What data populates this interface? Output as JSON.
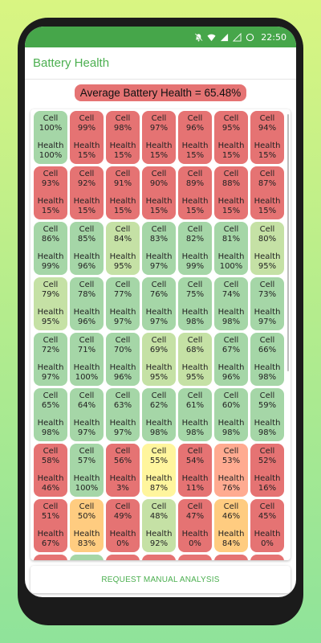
{
  "status_bar": {
    "time": "22:50"
  },
  "app_bar": {
    "title": "Battery Health"
  },
  "summary": {
    "label": "Average Battery Health = 65.48%"
  },
  "colors": {
    "red": "#e57373",
    "green": "#a5d6a7",
    "lightgreen": "#c5e1a5",
    "yellow": "#fff59d",
    "salmon": "#ffab91",
    "orange": "#ffcc80",
    "accent": "#4caf50",
    "status_bar": "#46a64a"
  },
  "labels": {
    "cell": "Cell",
    "health": "Health"
  },
  "cells": [
    {
      "cell": "100%",
      "health": "100%",
      "color": "green"
    },
    {
      "cell": "99%",
      "health": "15%",
      "color": "red"
    },
    {
      "cell": "98%",
      "health": "15%",
      "color": "red"
    },
    {
      "cell": "97%",
      "health": "15%",
      "color": "red"
    },
    {
      "cell": "96%",
      "health": "15%",
      "color": "red"
    },
    {
      "cell": "95%",
      "health": "15%",
      "color": "red"
    },
    {
      "cell": "94%",
      "health": "15%",
      "color": "red"
    },
    {
      "cell": "93%",
      "health": "15%",
      "color": "red"
    },
    {
      "cell": "92%",
      "health": "15%",
      "color": "red"
    },
    {
      "cell": "91%",
      "health": "15%",
      "color": "red"
    },
    {
      "cell": "90%",
      "health": "15%",
      "color": "red"
    },
    {
      "cell": "89%",
      "health": "15%",
      "color": "red"
    },
    {
      "cell": "88%",
      "health": "15%",
      "color": "red"
    },
    {
      "cell": "87%",
      "health": "15%",
      "color": "red"
    },
    {
      "cell": "86%",
      "health": "99%",
      "color": "green"
    },
    {
      "cell": "85%",
      "health": "96%",
      "color": "green"
    },
    {
      "cell": "84%",
      "health": "95%",
      "color": "lightgreen"
    },
    {
      "cell": "83%",
      "health": "97%",
      "color": "green"
    },
    {
      "cell": "82%",
      "health": "99%",
      "color": "green"
    },
    {
      "cell": "81%",
      "health": "100%",
      "color": "green"
    },
    {
      "cell": "80%",
      "health": "95%",
      "color": "lightgreen"
    },
    {
      "cell": "79%",
      "health": "95%",
      "color": "lightgreen"
    },
    {
      "cell": "78%",
      "health": "96%",
      "color": "green"
    },
    {
      "cell": "77%",
      "health": "97%",
      "color": "green"
    },
    {
      "cell": "76%",
      "health": "97%",
      "color": "green"
    },
    {
      "cell": "75%",
      "health": "98%",
      "color": "green"
    },
    {
      "cell": "74%",
      "health": "98%",
      "color": "green"
    },
    {
      "cell": "73%",
      "health": "97%",
      "color": "green"
    },
    {
      "cell": "72%",
      "health": "97%",
      "color": "green"
    },
    {
      "cell": "71%",
      "health": "100%",
      "color": "green"
    },
    {
      "cell": "70%",
      "health": "96%",
      "color": "green"
    },
    {
      "cell": "69%",
      "health": "95%",
      "color": "lightgreen"
    },
    {
      "cell": "68%",
      "health": "95%",
      "color": "lightgreen"
    },
    {
      "cell": "67%",
      "health": "96%",
      "color": "green"
    },
    {
      "cell": "66%",
      "health": "98%",
      "color": "green"
    },
    {
      "cell": "65%",
      "health": "98%",
      "color": "green"
    },
    {
      "cell": "64%",
      "health": "97%",
      "color": "green"
    },
    {
      "cell": "63%",
      "health": "97%",
      "color": "green"
    },
    {
      "cell": "62%",
      "health": "98%",
      "color": "green"
    },
    {
      "cell": "61%",
      "health": "98%",
      "color": "green"
    },
    {
      "cell": "60%",
      "health": "98%",
      "color": "green"
    },
    {
      "cell": "59%",
      "health": "98%",
      "color": "green"
    },
    {
      "cell": "58%",
      "health": "46%",
      "color": "red"
    },
    {
      "cell": "57%",
      "health": "100%",
      "color": "green"
    },
    {
      "cell": "56%",
      "health": "3%",
      "color": "red"
    },
    {
      "cell": "55%",
      "health": "87%",
      "color": "yellow"
    },
    {
      "cell": "54%",
      "health": "11%",
      "color": "red"
    },
    {
      "cell": "53%",
      "health": "76%",
      "color": "salmon"
    },
    {
      "cell": "52%",
      "health": "16%",
      "color": "red"
    },
    {
      "cell": "51%",
      "health": "67%",
      "color": "red"
    },
    {
      "cell": "50%",
      "health": "83%",
      "color": "orange"
    },
    {
      "cell": "49%",
      "health": "0%",
      "color": "red"
    },
    {
      "cell": "48%",
      "health": "92%",
      "color": "lightgreen"
    },
    {
      "cell": "47%",
      "health": "0%",
      "color": "red"
    },
    {
      "cell": "46%",
      "health": "84%",
      "color": "orange"
    },
    {
      "cell": "45%",
      "health": "0%",
      "color": "red"
    },
    {
      "cell": "",
      "health": "",
      "color": "red"
    },
    {
      "cell": "",
      "health": "",
      "color": "green"
    },
    {
      "cell": "",
      "health": "",
      "color": "red"
    },
    {
      "cell": "",
      "health": "",
      "color": "red"
    },
    {
      "cell": "",
      "health": "",
      "color": "red"
    },
    {
      "cell": "",
      "health": "",
      "color": "red"
    },
    {
      "cell": "",
      "health": "",
      "color": "red"
    }
  ],
  "actions": {
    "request_label": "REQUEST MANUAL ANALYSIS"
  }
}
